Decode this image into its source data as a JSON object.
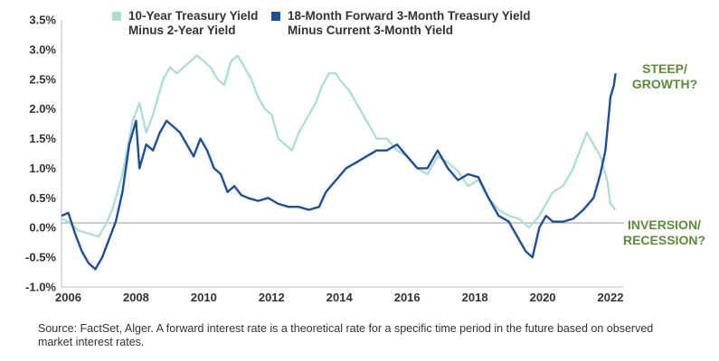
{
  "chart_data": {
    "type": "line",
    "title": "",
    "xlabel": "",
    "ylabel": "",
    "xlim": [
      2005.8,
      2022.4
    ],
    "ylim": [
      -1.0,
      3.5
    ],
    "grid": false,
    "legend_position": "top",
    "x_ticks": [
      2006,
      2008,
      2010,
      2012,
      2014,
      2016,
      2018,
      2020,
      2022
    ],
    "x_tick_labels": [
      "2006",
      "2008",
      "2010",
      "2012",
      "2014",
      "2016",
      "2018",
      "2020",
      "2022"
    ],
    "y_ticks": [
      -1.0,
      -0.5,
      0.0,
      0.5,
      1.0,
      1.5,
      2.0,
      2.5,
      3.0,
      3.5
    ],
    "y_tick_labels": [
      "-1.0%",
      "-0.5%",
      "0.0%",
      "0.5%",
      "1.0%",
      "1.5%",
      "2.0%",
      "2.5%",
      "3.0%",
      "3.5%"
    ],
    "reference_line": 0.08,
    "series": [
      {
        "name": "10-Year Treasury Yield\nMinus 2-Year Yield",
        "color": "#a8dcd6",
        "x": [
          2005.8,
          2006.0,
          2006.3,
          2006.6,
          2006.9,
          2007.1,
          2007.3,
          2007.6,
          2007.9,
          2008.1,
          2008.3,
          2008.5,
          2008.8,
          2009.0,
          2009.2,
          2009.4,
          2009.6,
          2009.8,
          2010.0,
          2010.2,
          2010.4,
          2010.6,
          2010.8,
          2011.0,
          2011.2,
          2011.4,
          2011.6,
          2011.8,
          2012.0,
          2012.2,
          2012.4,
          2012.6,
          2012.8,
          2013.0,
          2013.3,
          2013.5,
          2013.7,
          2013.9,
          2014.0,
          2014.3,
          2014.6,
          2014.9,
          2015.1,
          2015.4,
          2015.7,
          2016.0,
          2016.3,
          2016.6,
          2016.9,
          2017.2,
          2017.5,
          2017.8,
          2018.1,
          2018.4,
          2018.7,
          2019.0,
          2019.3,
          2019.6,
          2019.9,
          2020.1,
          2020.3,
          2020.6,
          2020.9,
          2021.1,
          2021.3,
          2021.5,
          2021.7,
          2021.9,
          2022.0,
          2022.15
        ],
        "values": [
          0.15,
          0.1,
          -0.05,
          -0.1,
          -0.15,
          0.05,
          0.3,
          0.9,
          1.8,
          2.1,
          1.6,
          1.9,
          2.5,
          2.7,
          2.6,
          2.7,
          2.8,
          2.9,
          2.8,
          2.7,
          2.5,
          2.4,
          2.8,
          2.9,
          2.7,
          2.5,
          2.2,
          2.0,
          1.9,
          1.5,
          1.4,
          1.3,
          1.6,
          1.8,
          2.1,
          2.4,
          2.6,
          2.6,
          2.5,
          2.3,
          2.0,
          1.7,
          1.5,
          1.5,
          1.3,
          1.2,
          1.0,
          0.9,
          1.2,
          1.1,
          0.95,
          0.7,
          0.8,
          0.5,
          0.3,
          0.2,
          0.15,
          0.0,
          0.2,
          0.4,
          0.6,
          0.7,
          1.0,
          1.3,
          1.6,
          1.4,
          1.2,
          0.8,
          0.4,
          0.3
        ]
      },
      {
        "name": "18-Month Forward 3-Month Treasury Yield\nMinus Current 3-Month Yield",
        "color": "#1f4e99",
        "x": [
          2005.8,
          2006.0,
          2006.2,
          2006.4,
          2006.6,
          2006.8,
          2007.0,
          2007.2,
          2007.4,
          2007.6,
          2007.8,
          2008.0,
          2008.1,
          2008.3,
          2008.5,
          2008.7,
          2008.9,
          2009.1,
          2009.3,
          2009.5,
          2009.7,
          2009.9,
          2010.1,
          2010.3,
          2010.5,
          2010.7,
          2010.9,
          2011.1,
          2011.3,
          2011.6,
          2011.9,
          2012.2,
          2012.5,
          2012.8,
          2013.1,
          2013.4,
          2013.6,
          2013.9,
          2014.2,
          2014.5,
          2014.8,
          2015.1,
          2015.4,
          2015.7,
          2016.0,
          2016.3,
          2016.6,
          2016.9,
          2017.2,
          2017.5,
          2017.8,
          2018.1,
          2018.4,
          2018.7,
          2019.0,
          2019.3,
          2019.5,
          2019.7,
          2019.9,
          2020.1,
          2020.3,
          2020.6,
          2020.9,
          2021.2,
          2021.5,
          2021.7,
          2021.85,
          2022.0,
          2022.1,
          2022.15
        ],
        "values": [
          0.2,
          0.25,
          -0.1,
          -0.4,
          -0.6,
          -0.7,
          -0.5,
          -0.2,
          0.1,
          0.6,
          1.4,
          1.8,
          1.0,
          1.4,
          1.3,
          1.6,
          1.8,
          1.7,
          1.6,
          1.4,
          1.2,
          1.5,
          1.3,
          1.0,
          0.9,
          0.6,
          0.7,
          0.55,
          0.5,
          0.45,
          0.5,
          0.4,
          0.35,
          0.35,
          0.3,
          0.35,
          0.6,
          0.8,
          1.0,
          1.1,
          1.2,
          1.3,
          1.3,
          1.4,
          1.2,
          1.0,
          1.0,
          1.3,
          1.0,
          0.8,
          0.9,
          0.85,
          0.5,
          0.2,
          0.1,
          -0.2,
          -0.4,
          -0.5,
          0.0,
          0.2,
          0.1,
          0.1,
          0.15,
          0.3,
          0.5,
          0.9,
          1.3,
          2.2,
          2.4,
          2.6
        ]
      }
    ],
    "annotations": [
      {
        "text": "STEEP/\nGROWTH?",
        "color": "#5b8c3a"
      },
      {
        "text": "INVERSION/\nRECESSION?",
        "color": "#5b8c3a"
      }
    ]
  },
  "source_note": "Source: FactSet, Alger. A forward interest rate is a theoretical rate for a specific time period in the future based on observed market interest rates."
}
